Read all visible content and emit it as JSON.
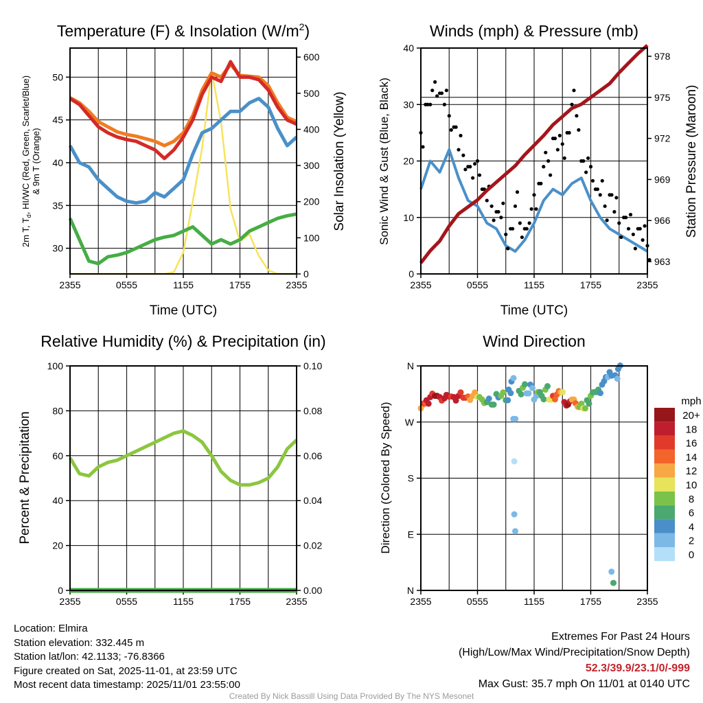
{
  "colors": {
    "temp": "#d42a26",
    "temp9m": "#f07c22",
    "hiwc": "#4a90c9",
    "dew": "#45ad44",
    "solar": "#f7e35a",
    "wind": "#4a90c9",
    "gust": "#000000",
    "pressure": "#a3161b",
    "rh": "#8cc63f",
    "precip": "#45ad44"
  },
  "xticks": [
    "2355",
    "0555",
    "1155",
    "1755",
    "2355"
  ],
  "panels": {
    "temp": {
      "title": "Temperature (F) & Insolation (W/m",
      "title_sup": "2",
      "title_end": ")",
      "ylabel_line1": "2m T, T",
      "ylabel_sub": "d",
      "ylabel_rest": ", HI/WC (Red, Green, Scarlet/Blue)",
      "ylabel_line2": "& 9m T (Orange)",
      "y2label": "Solar Insolation (Yellow)",
      "xlabel": "Time (UTC)",
      "yticks": [
        "30",
        "35",
        "40",
        "45",
        "50"
      ],
      "y2ticks": [
        "0",
        "100",
        "200",
        "300",
        "400",
        "500",
        "600"
      ]
    },
    "wind": {
      "title": "Winds (mph) & Pressure (mb)",
      "ylabel": "Sonic Wind & Gust (Blue, Black)",
      "y2label": "Station Pressure (Maroon)",
      "xlabel": "Time (UTC)",
      "yticks": [
        "0",
        "10",
        "20",
        "30",
        "40"
      ],
      "y2ticks": [
        "963",
        "966",
        "969",
        "972",
        "975",
        "978"
      ]
    },
    "rh": {
      "title": "Relative Humidity (%) & Precipitation (in)",
      "ylabel": "Percent & Precipitation",
      "yticks": [
        "0",
        "20",
        "40",
        "60",
        "80",
        "100"
      ],
      "y2ticks": [
        "0.00",
        "0.02",
        "0.04",
        "0.06",
        "0.08",
        "0.10"
      ]
    },
    "dir": {
      "title": "Wind Direction",
      "ylabel": "Direction (Colored By Speed)",
      "yticks": [
        "N",
        "E",
        "S",
        "W",
        "N"
      ],
      "legend_title": "mph",
      "legend_labels": [
        "0",
        "2",
        "4",
        "6",
        "8",
        "10",
        "12",
        "14",
        "16",
        "18",
        "20+"
      ],
      "legend_colors": [
        "#b3e0f8",
        "#7cb9e6",
        "#4a8fc8",
        "#4aa870",
        "#7bc24a",
        "#e7e35a",
        "#f7a743",
        "#f26429",
        "#e13a2b",
        "#be1e2d",
        "#96171b"
      ]
    }
  },
  "chart_data": [
    {
      "type": "line",
      "title": "Temperature (F) & Insolation (W/m2)",
      "xlabel": "Time (UTC)",
      "x_hours": [
        0,
        1,
        2,
        3,
        4,
        5,
        6,
        7,
        8,
        9,
        10,
        11,
        12,
        13,
        14,
        15,
        16,
        17,
        18,
        19,
        20,
        21,
        22,
        23,
        24
      ],
      "ylim": [
        27,
        53.4
      ],
      "y2lim": [
        0,
        625
      ],
      "series": [
        {
          "name": "2m T (Red)",
          "axis": "left",
          "values": [
            47.5,
            46.8,
            45.5,
            44.2,
            43.5,
            43,
            42.7,
            42.5,
            42,
            41.5,
            40.5,
            41.5,
            43,
            45,
            48,
            50,
            49.5,
            51.8,
            50,
            50,
            49.7,
            48.5,
            46.5,
            45,
            44.5
          ]
        },
        {
          "name": "9m T (Orange)",
          "axis": "left",
          "values": [
            47.6,
            47,
            46,
            44.8,
            44.2,
            43.6,
            43.3,
            43.1,
            42.8,
            42.5,
            42,
            42.5,
            43.5,
            45.5,
            48.5,
            50.5,
            50,
            51.5,
            50.2,
            50.1,
            50,
            49,
            47,
            45.3,
            44.8
          ]
        },
        {
          "name": "HI/WC (Blue)",
          "axis": "left",
          "values": [
            42,
            40,
            39.5,
            38,
            37,
            36,
            35.5,
            35.3,
            35.5,
            36.5,
            36,
            37,
            38,
            41,
            43.5,
            44,
            45,
            46,
            46,
            47,
            47.5,
            46.5,
            44,
            42,
            43
          ]
        },
        {
          "name": "Td (Green)",
          "axis": "left",
          "values": [
            33.5,
            31,
            28.5,
            28.2,
            29,
            29.2,
            29.5,
            30,
            30.5,
            31,
            31.3,
            31.5,
            32,
            32.5,
            31.5,
            30.5,
            31,
            30.5,
            31,
            32,
            32.5,
            33,
            33.5,
            33.8,
            34
          ]
        },
        {
          "name": "Solar Insolation (Yellow)",
          "axis": "right",
          "values": [
            0,
            0,
            0,
            0,
            0,
            0,
            0,
            0,
            0,
            0,
            0,
            5,
            60,
            200,
            350,
            560,
            420,
            180,
            90,
            110,
            50,
            10,
            0,
            0,
            0
          ]
        }
      ]
    },
    {
      "type": "line",
      "title": "Winds (mph) & Pressure (mb)",
      "xlabel": "Time (UTC)",
      "x_hours": [
        0,
        1,
        2,
        3,
        4,
        5,
        6,
        7,
        8,
        9,
        10,
        11,
        12,
        13,
        14,
        15,
        16,
        17,
        18,
        19,
        20,
        21,
        22,
        23,
        24
      ],
      "ylim": [
        0,
        40
      ],
      "y2lim": [
        962.1,
        978.6
      ],
      "series": [
        {
          "name": "Sonic Wind (Blue)",
          "axis": "left",
          "values": [
            15,
            20,
            18,
            22,
            17,
            13,
            12,
            9,
            8,
            5,
            4,
            6,
            9,
            13,
            15,
            14,
            16,
            17,
            13,
            10,
            8,
            7,
            6,
            5,
            4
          ]
        },
        {
          "name": "Station Pressure (Maroon)",
          "axis": "right",
          "values": [
            962.9,
            963.8,
            964.5,
            965.6,
            966.5,
            967,
            967.5,
            968.2,
            968.8,
            969.4,
            970,
            970.8,
            971.5,
            972.2,
            973,
            973.6,
            974.2,
            974.5,
            975,
            975.5,
            976,
            976.8,
            977.5,
            978.2,
            978.8
          ]
        }
      ],
      "gust_points": {
        "x_hours": [
          0,
          0.5,
          1,
          1.5,
          2,
          2.5,
          3,
          3.5,
          4,
          4.5,
          5,
          5.5,
          6,
          6.5,
          7,
          7.5,
          8,
          8.5,
          9,
          9.5,
          10,
          10.5,
          11,
          11.5,
          12,
          12.5,
          13,
          13.5,
          14,
          14.5,
          15,
          15.5,
          16,
          16.5,
          17,
          17.5,
          18,
          18.5,
          19,
          19.5,
          20,
          20.5,
          21,
          21.5,
          22,
          22.5,
          23,
          23.5,
          24
        ],
        "values": [
          25,
          30,
          30,
          34,
          32,
          30,
          28,
          26,
          22,
          21,
          19,
          17,
          20,
          15,
          13,
          12,
          11,
          10,
          7,
          8,
          12,
          9,
          8,
          9,
          14,
          16,
          19,
          20,
          24,
          22,
          23,
          25,
          30,
          28,
          20,
          18,
          19,
          15,
          14,
          12,
          14,
          11,
          9,
          10,
          8,
          7,
          8,
          6,
          5
        ]
      }
    },
    {
      "type": "line",
      "title": "Relative Humidity (%) & Precipitation (in)",
      "ylabel": "Percent & Precipitation",
      "x_hours": [
        0,
        1,
        2,
        3,
        4,
        5,
        6,
        7,
        8,
        9,
        10,
        11,
        12,
        13,
        14,
        15,
        16,
        17,
        18,
        19,
        20,
        21,
        22,
        23,
        24
      ],
      "ylim": [
        0,
        100
      ],
      "y2lim": [
        0,
        0.1
      ],
      "series": [
        {
          "name": "Relative Humidity",
          "axis": "left",
          "values": [
            59,
            52,
            51,
            55,
            57,
            58,
            60,
            62,
            64,
            66,
            68,
            70,
            71,
            69,
            66,
            60,
            53,
            49,
            47,
            47,
            48,
            50,
            55,
            63,
            67
          ]
        },
        {
          "name": "Precipitation",
          "axis": "right",
          "values": [
            0,
            0,
            0,
            0,
            0,
            0,
            0,
            0,
            0,
            0,
            0,
            0,
            0,
            0,
            0,
            0,
            0,
            0,
            0,
            0,
            0,
            0,
            0,
            0,
            0
          ]
        }
      ]
    },
    {
      "type": "scatter",
      "title": "Wind Direction",
      "ylabel": "Direction (Colored By Speed)",
      "ylim": [
        0,
        360
      ],
      "color_by": "speed (mph)",
      "points": [
        [
          0,
          292,
          12
        ],
        [
          0.3,
          300,
          16
        ],
        [
          0.6,
          305,
          18
        ],
        [
          1,
          310,
          19
        ],
        [
          1.5,
          312,
          20
        ],
        [
          2,
          310,
          19
        ],
        [
          2.5,
          308,
          18
        ],
        [
          3,
          311,
          19
        ],
        [
          3.5,
          310,
          18
        ],
        [
          4,
          312,
          18
        ],
        [
          4.5,
          309,
          16
        ],
        [
          5,
          311,
          14
        ],
        [
          5.5,
          312,
          12
        ],
        [
          6,
          310,
          11
        ],
        [
          6.5,
          306,
          9
        ],
        [
          7,
          302,
          7
        ],
        [
          7.5,
          298,
          6
        ],
        [
          8,
          315,
          7
        ],
        [
          8.5,
          312,
          8
        ],
        [
          9,
          305,
          6
        ],
        [
          9.3,
          322,
          5
        ],
        [
          9.6,
          335,
          4
        ],
        [
          9.8,
          275,
          3
        ],
        [
          9.9,
          207,
          1
        ],
        [
          9.9,
          122,
          2
        ],
        [
          10,
          95,
          2
        ],
        [
          10.4,
          320,
          7
        ],
        [
          10.8,
          325,
          8
        ],
        [
          11.2,
          316,
          3
        ],
        [
          11.6,
          330,
          4
        ],
        [
          12,
          306,
          3
        ],
        [
          12.4,
          318,
          8
        ],
        [
          12.8,
          312,
          7
        ],
        [
          13.2,
          322,
          9
        ],
        [
          13.6,
          306,
          10
        ],
        [
          14,
          312,
          16
        ],
        [
          14.4,
          314,
          14
        ],
        [
          14.8,
          318,
          13
        ],
        [
          15.2,
          302,
          18
        ],
        [
          15.6,
          298,
          20
        ],
        [
          16,
          306,
          12
        ],
        [
          16.4,
          300,
          14
        ],
        [
          16.8,
          294,
          8
        ],
        [
          17.2,
          292,
          10
        ],
        [
          17.6,
          305,
          6
        ],
        [
          18,
          312,
          9
        ],
        [
          18.4,
          318,
          7
        ],
        [
          18.8,
          322,
          6
        ],
        [
          19.2,
          330,
          5
        ],
        [
          19.6,
          342,
          4
        ],
        [
          20,
          350,
          4
        ],
        [
          20.2,
          30,
          3
        ],
        [
          20.4,
          12,
          6
        ],
        [
          20.6,
          345,
          4
        ],
        [
          20.9,
          355,
          4
        ]
      ]
    }
  ],
  "info": {
    "location": "Location: Elmira",
    "elevation": "Station elevation: 332.445 m",
    "latlon": "Station lat/lon: 42.1133; -76.8366",
    "created": "Figure created on Sat, 2025-11-01, at 23:59 UTC",
    "recent": "Most recent data timestamp: 2025/11/01 23:55:00",
    "extremes_title": "Extremes For Past 24 Hours",
    "extremes_sub": "(High/Low/Max Wind/Precipitation/Snow Depth)",
    "extremes_values": "52.3/39.9/23.1/0/-999",
    "max_gust": "Max Gust: 35.7 mph On 11/01 at 0140 UTC",
    "credit": "Created By Nick Bassill Using Data Provided By The NYS Mesonet"
  }
}
